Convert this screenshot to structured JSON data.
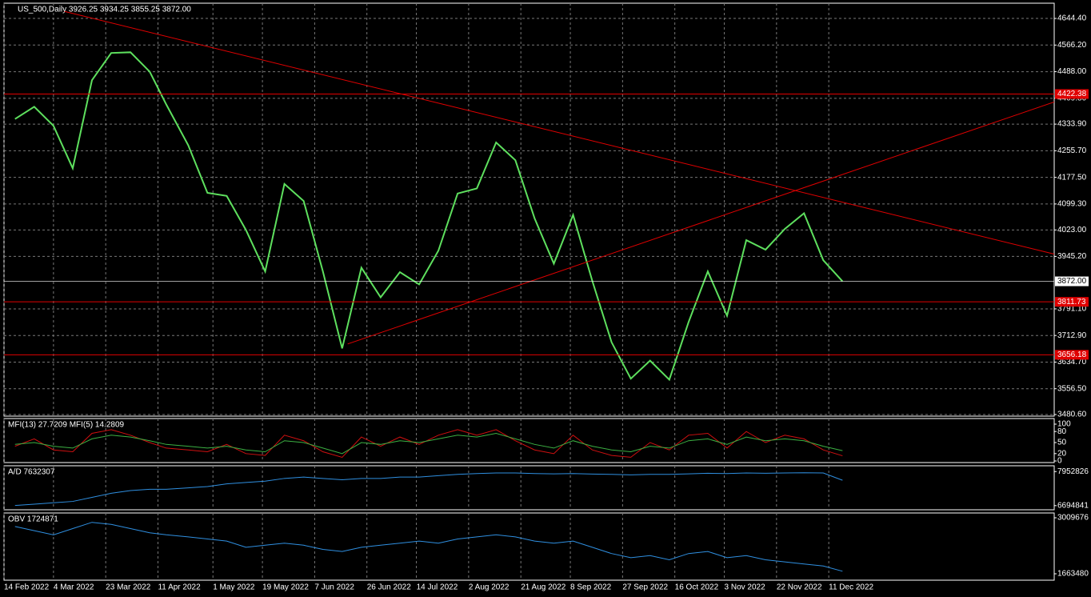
{
  "chart_data": [
    {
      "type": "line",
      "title": "US_500,Daily  3926.25 3934.25 3855.25 3872.00",
      "color": "#5ee05e",
      "x": [
        "18 Feb 2022",
        "25 Feb 2022",
        "4 Mar 2022",
        "11 Mar 2022",
        "18 Mar 2022",
        "25 Mar 2022",
        "1 Apr 2022",
        "8 Apr 2022",
        "14 Apr 2022",
        "22 Apr 2022",
        "29 Apr 2022",
        "6 May 2022",
        "13 May 2022",
        "20 May 2022",
        "27 May 2022",
        "3 Jun 2022",
        "10 Jun 2022",
        "17 Jun 2022",
        "24 Jun 2022",
        "1 Jul 2022",
        "8 Jul 2022",
        "15 Jul 2022",
        "22 Jul 2022",
        "29 Jul 2022",
        "5 Aug 2022",
        "12 Aug 2022",
        "19 Aug 2022",
        "26 Aug 2022",
        "2 Sep 2022",
        "9 Sep 2022",
        "16 Sep 2022",
        "23 Sep 2022",
        "30 Sep 2022",
        "7 Oct 2022",
        "14 Oct 2022",
        "21 Oct 2022",
        "28 Oct 2022",
        "4 Nov 2022",
        "11 Nov 2022",
        "18 Nov 2022",
        "25 Nov 2022",
        "2 Dec 2022",
        "9 Dec 2022",
        "16 Dec 2022"
      ],
      "values": [
        4349,
        4385,
        4329,
        4204,
        4463,
        4543,
        4545,
        4488,
        4392,
        4272,
        4132,
        4123,
        4023,
        3901,
        4158,
        4108,
        3901,
        3675,
        3912,
        3825,
        3899,
        3863,
        3962,
        4130,
        4145,
        4280,
        4228,
        4057,
        3924,
        4067,
        3873,
        3693,
        3586,
        3639,
        3583,
        3752,
        3901,
        3771,
        3993,
        3965,
        4026,
        4072,
        3934,
        3872
      ],
      "xlim": [
        "14 Feb 2022",
        "3 Mar 2023"
      ],
      "xticks": [
        "14 Feb 2022",
        "4 Mar 2022",
        "23 Mar 2022",
        "11 Apr 2022",
        "1 May 2022",
        "19 May 2022",
        "7 Jun 2022",
        "26 Jun 2022",
        "14 Jul 2022",
        "2 Aug 2022",
        "21 Aug 2022",
        "8 Sep 2022",
        "27 Sep 2022",
        "16 Oct 2022",
        "3 Nov 2022",
        "22 Nov 2022",
        "11 Dec 2022"
      ],
      "ylim": [
        3475.9,
        4689.2
      ],
      "yticks": [
        {
          "value": 4644.4,
          "label": "4644.40"
        },
        {
          "value": 4566.2,
          "label": "4566.20"
        },
        {
          "value": 4488,
          "label": "4488.00"
        },
        {
          "value": 4409.8,
          "label": "4409.80"
        },
        {
          "value": 4333.9,
          "label": "4333.90"
        },
        {
          "value": 4255.7,
          "label": "4255.70"
        },
        {
          "value": 4177.5,
          "label": "4177.50"
        },
        {
          "value": 4099.3,
          "label": "4099.30"
        },
        {
          "value": 4023,
          "label": "4023.00"
        },
        {
          "value": 3945.2,
          "label": "3945.20"
        },
        {
          "value": 3791.1,
          "label": "3791.10"
        },
        {
          "value": 3712.9,
          "label": "3712.90"
        },
        {
          "value": 3634.7,
          "label": "3634.70"
        },
        {
          "value": 3556.5,
          "label": "3556.50"
        },
        {
          "value": 3480.6,
          "label": "3480.60"
        }
      ],
      "price_label": {
        "value": 3872,
        "label": "3872.00"
      },
      "hlines": [
        4422.38,
        3811.73,
        3656.18
      ],
      "hline_color": "#e00000",
      "trendlines": [
        {
          "x": [
            "8 Mar 2022",
            "3 Mar 2023"
          ],
          "y": [
            4665,
            3952
          ]
        },
        {
          "x": [
            "19 Jun 2022",
            "3 Mar 2023"
          ],
          "y": [
            3688,
            4399
          ]
        }
      ],
      "grid": true
    },
    {
      "type": "line",
      "title": "MFI(13) 27.7209  MFI(5) 14.2809",
      "ylim": [
        -4.3,
        115.2
      ],
      "yticks": [
        100,
        80,
        50,
        20,
        0
      ],
      "series": [
        {
          "color": "#d01010",
          "values": [
            40,
            60,
            30,
            25,
            75,
            85,
            70,
            50,
            35,
            30,
            25,
            45,
            20,
            15,
            70,
            55,
            25,
            10,
            65,
            40,
            65,
            45,
            70,
            85,
            70,
            85,
            55,
            30,
            20,
            70,
            30,
            15,
            10,
            50,
            30,
            70,
            75,
            35,
            80,
            50,
            70,
            60,
            30,
            14
          ]
        },
        {
          "color": "#3cb043",
          "values": [
            45,
            50,
            40,
            35,
            60,
            70,
            65,
            55,
            45,
            40,
            35,
            40,
            30,
            25,
            55,
            50,
            35,
            20,
            50,
            45,
            55,
            50,
            60,
            70,
            65,
            75,
            60,
            45,
            35,
            55,
            40,
            30,
            25,
            40,
            35,
            55,
            60,
            45,
            65,
            55,
            60,
            55,
            40,
            28
          ]
        }
      ]
    },
    {
      "type": "line",
      "title": "A/D 7632307",
      "ylim": [
        6541430,
        8167600
      ],
      "yticks": [
        7952826,
        6694841
      ],
      "series": [
        {
          "color": "#2f8fe0",
          "values": [
            6700000,
            6750000,
            6800000,
            6850000,
            7000000,
            7150000,
            7250000,
            7300000,
            7300000,
            7350000,
            7400000,
            7500000,
            7550000,
            7600000,
            7700000,
            7750000,
            7700000,
            7650000,
            7700000,
            7700000,
            7750000,
            7750000,
            7800000,
            7850000,
            7880000,
            7900000,
            7900000,
            7880000,
            7870000,
            7880000,
            7860000,
            7850000,
            7830000,
            7850000,
            7850000,
            7870000,
            7890000,
            7880000,
            7900000,
            7890000,
            7900000,
            7910000,
            7900000,
            7632307
          ]
        }
      ]
    },
    {
      "type": "line",
      "title": "OBV 1724871",
      "ylim": [
        1509630,
        3125060
      ],
      "yticks": [
        3009676,
        1663480
      ],
      "series": [
        {
          "color": "#2f8fe0",
          "values": [
            2800000,
            2700000,
            2600000,
            2750000,
            2900000,
            2850000,
            2750000,
            2650000,
            2600000,
            2550000,
            2500000,
            2450000,
            2300000,
            2350000,
            2400000,
            2350000,
            2250000,
            2200000,
            2300000,
            2350000,
            2400000,
            2450000,
            2400000,
            2500000,
            2550000,
            2600000,
            2550000,
            2450000,
            2400000,
            2450000,
            2300000,
            2150000,
            2050000,
            2100000,
            2000000,
            2150000,
            2200000,
            2050000,
            2100000,
            2000000,
            1950000,
            1900000,
            1850000,
            1724871
          ]
        }
      ]
    }
  ]
}
